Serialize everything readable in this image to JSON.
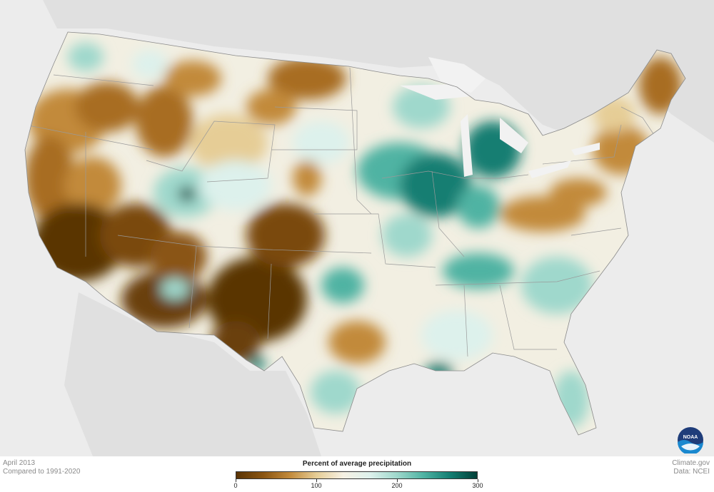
{
  "map": {
    "subject": "Percent of average precipitation, contiguous United States",
    "period_label": "April 2013",
    "baseline_label": "Compared to 1991-2020"
  },
  "legend": {
    "title": "Percent of average precipitation",
    "ticks": [
      "0",
      "100",
      "200",
      "300"
    ],
    "tick_values": [
      0,
      100,
      200,
      300
    ],
    "min": 0,
    "max": 300,
    "colors": [
      "#5a3405",
      "#8a5512",
      "#c28a3b",
      "#e6cd96",
      "#f6f1e4",
      "#ddf1ec",
      "#9fd8cc",
      "#4fb3a3",
      "#137e72",
      "#013f37"
    ]
  },
  "credits": {
    "publisher": "Climate.gov",
    "data_source": "Data: NCEI"
  },
  "logo": {
    "text": "NOAA",
    "icon": "noaa-logo-icon"
  },
  "colors": {
    "background": "#ececec",
    "land_outside": "#dedede",
    "state_border": "#9a9a9a",
    "dry_extreme": "#5a3405",
    "wet_extreme": "#013f37"
  }
}
